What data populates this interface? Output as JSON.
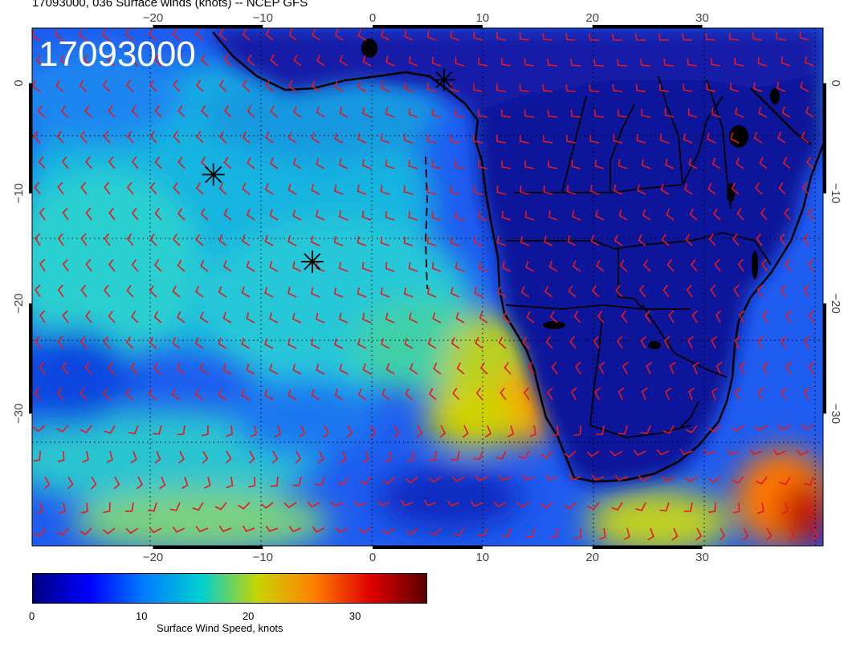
{
  "header": {
    "title": "17093000, 036 Surface winds (knots) -- NCEP GFS",
    "stamp": "17093000"
  },
  "map": {
    "lon_range": [
      -31,
      41
    ],
    "lat_range": [
      -42,
      5
    ],
    "lon_ticks": [
      -20,
      -10,
      0,
      10,
      20,
      30
    ],
    "lat_ticks": [
      0,
      -10,
      -20,
      -30
    ],
    "lon_tick_labels": [
      "−20",
      "−10",
      "0",
      "10",
      "20",
      "30"
    ],
    "lat_tick_labels": [
      "0",
      "−10",
      "−20",
      "−30"
    ],
    "grid": "dotted",
    "vector_color": "#e41a1c",
    "coast_color": "#000000",
    "markers": [
      {
        "name": "star",
        "lon": 6.5,
        "lat": 0.3
      },
      {
        "name": "star",
        "lon": -14.5,
        "lat": -8.3
      },
      {
        "name": "star",
        "lon": -5.5,
        "lat": -16.2
      }
    ]
  },
  "colorbar": {
    "label": "Surface Wind Speed, knots",
    "min": 0,
    "max": 37,
    "ticks": [
      "0",
      "10",
      "20",
      "30"
    ],
    "tick_values": [
      0,
      10,
      20,
      30
    ],
    "colors": [
      "#00007f",
      "#0000ff",
      "#007fff",
      "#00d0d0",
      "#c8d400",
      "#ff8000",
      "#e00000",
      "#5a0000"
    ]
  }
}
